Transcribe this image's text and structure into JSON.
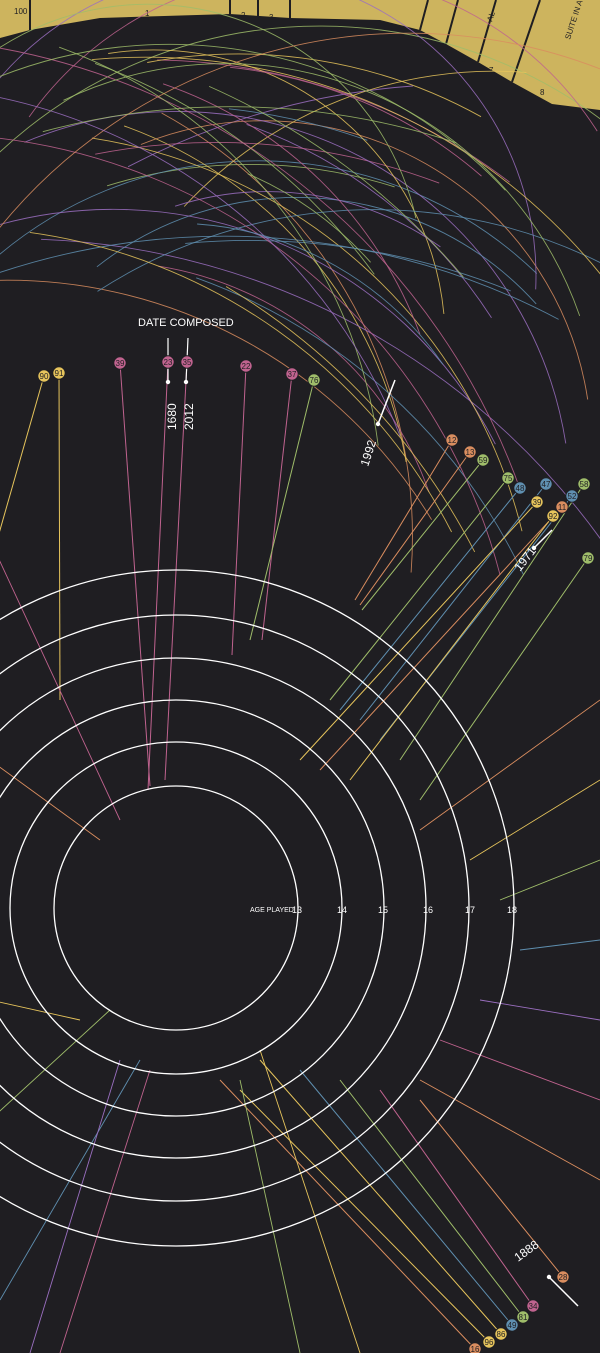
{
  "colors": {
    "background": "#1f1e22",
    "band": "#cdb45e",
    "ring": "#ffffff",
    "pink": "#c0638f",
    "orange": "#d98d5f",
    "yellow": "#e6c45c",
    "green": "#9fbd6a",
    "blue": "#5f8fb0",
    "purple": "#9b6fc1"
  },
  "top_band": {
    "numbers": [
      "100",
      "1",
      "2",
      "3",
      "4",
      "5",
      "6",
      "7",
      "8"
    ],
    "rotated_labels": [
      "AL",
      "SUITE IN A MI"
    ]
  },
  "legend": {
    "date_composed_label": "DATE COMPOSED",
    "year_min": "1680",
    "year_max": "2012"
  },
  "age_axis": {
    "label": "AGE PLAYED",
    "ages": [
      "13",
      "14",
      "15",
      "16",
      "17",
      "18"
    ]
  },
  "year_markers": [
    "1992",
    "1971",
    "1888"
  ],
  "nodes": [
    {
      "id": "90",
      "color": "yellow"
    },
    {
      "id": "91",
      "color": "yellow"
    },
    {
      "id": "39",
      "color": "pink"
    },
    {
      "id": "23",
      "color": "pink"
    },
    {
      "id": "35",
      "color": "pink"
    },
    {
      "id": "22",
      "color": "pink"
    },
    {
      "id": "37",
      "color": "pink"
    },
    {
      "id": "76",
      "color": "green"
    },
    {
      "id": "12",
      "color": "orange"
    },
    {
      "id": "13",
      "color": "orange"
    },
    {
      "id": "59",
      "color": "green"
    },
    {
      "id": "75",
      "color": "green"
    },
    {
      "id": "48",
      "color": "blue"
    },
    {
      "id": "47",
      "color": "blue"
    },
    {
      "id": "58",
      "color": "green"
    },
    {
      "id": "52",
      "color": "blue"
    },
    {
      "id": "39",
      "color": "yellow"
    },
    {
      "id": "11",
      "color": "orange"
    },
    {
      "id": "92",
      "color": "yellow"
    },
    {
      "id": "79",
      "color": "green"
    },
    {
      "id": "28",
      "color": "orange"
    },
    {
      "id": "34",
      "color": "pink"
    },
    {
      "id": "81",
      "color": "green"
    },
    {
      "id": "49",
      "color": "blue"
    },
    {
      "id": "86",
      "color": "yellow"
    },
    {
      "id": "96",
      "color": "yellow"
    },
    {
      "id": "16",
      "color": "orange"
    }
  ]
}
